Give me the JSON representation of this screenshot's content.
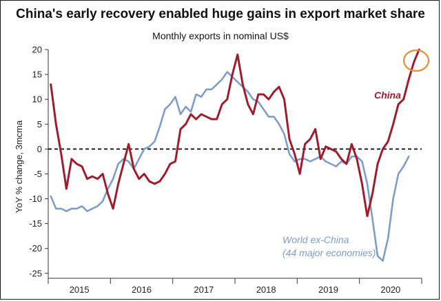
{
  "chart_data": {
    "type": "line",
    "title": "China's early recovery enabled huge gains in export market share",
    "subtitle": "Monthly exports in nominal US$",
    "xlabel": "",
    "ylabel": "YoY % change, 3mcma",
    "ylim": [
      -26,
      20
    ],
    "yticks": [
      20,
      15,
      10,
      5,
      0,
      -5,
      -10,
      -15,
      -20,
      -25
    ],
    "xticks": [
      "2015",
      "2016",
      "2017",
      "2018",
      "2019",
      "2020"
    ],
    "x_start": "2015-01",
    "series": [
      {
        "name": "China",
        "label": "China",
        "color": "#a01c2c",
        "values": [
          13,
          5,
          -1,
          -8,
          -2,
          -3,
          -3.5,
          -6,
          -5.5,
          -6,
          -5,
          -9,
          -12,
          -7,
          -3,
          1,
          -4,
          -6,
          -5,
          -6.5,
          -7,
          -6.5,
          -5,
          -3,
          -2.5,
          4,
          5,
          7,
          6,
          7,
          6.5,
          6,
          6,
          9,
          10,
          15,
          19,
          13,
          9,
          7,
          11,
          11,
          10,
          11.5,
          12.5,
          10,
          2,
          -1,
          -5,
          1,
          2,
          4,
          -2,
          0.5,
          0,
          -0.5,
          -2,
          -3,
          1,
          -2,
          -7,
          -13.5,
          -9,
          -3,
          0,
          1.5,
          5,
          9,
          10,
          14,
          17.5,
          20
        ]
      },
      {
        "name": "World ex-China",
        "label": "World ex-China",
        "label_2": "(44 major economies)",
        "color": "#7c9dcc",
        "values": [
          -9.5,
          -12,
          -12,
          -12.5,
          -12,
          -12,
          -11.5,
          -12.5,
          -12,
          -11.5,
          -10.5,
          -8,
          -6,
          -3,
          -2,
          -2.5,
          -4,
          -2,
          0,
          0.5,
          1.5,
          4.5,
          8,
          9,
          10.5,
          7,
          8.5,
          7.5,
          11,
          10.5,
          12,
          12,
          13,
          14,
          15.5,
          14.5,
          13.5,
          12.5,
          11.5,
          10,
          9.5,
          8,
          6.5,
          6.5,
          5,
          3,
          -1,
          -2.5,
          -2,
          -2,
          -2.5,
          -2,
          -1.5,
          -2.5,
          -3,
          -3.5,
          -2.5,
          -3,
          -1.5,
          -1.5,
          -2.5,
          -7,
          -14,
          -21.5,
          -22.5,
          -18,
          -10,
          -5,
          -3.5,
          -1.5
        ]
      }
    ]
  }
}
